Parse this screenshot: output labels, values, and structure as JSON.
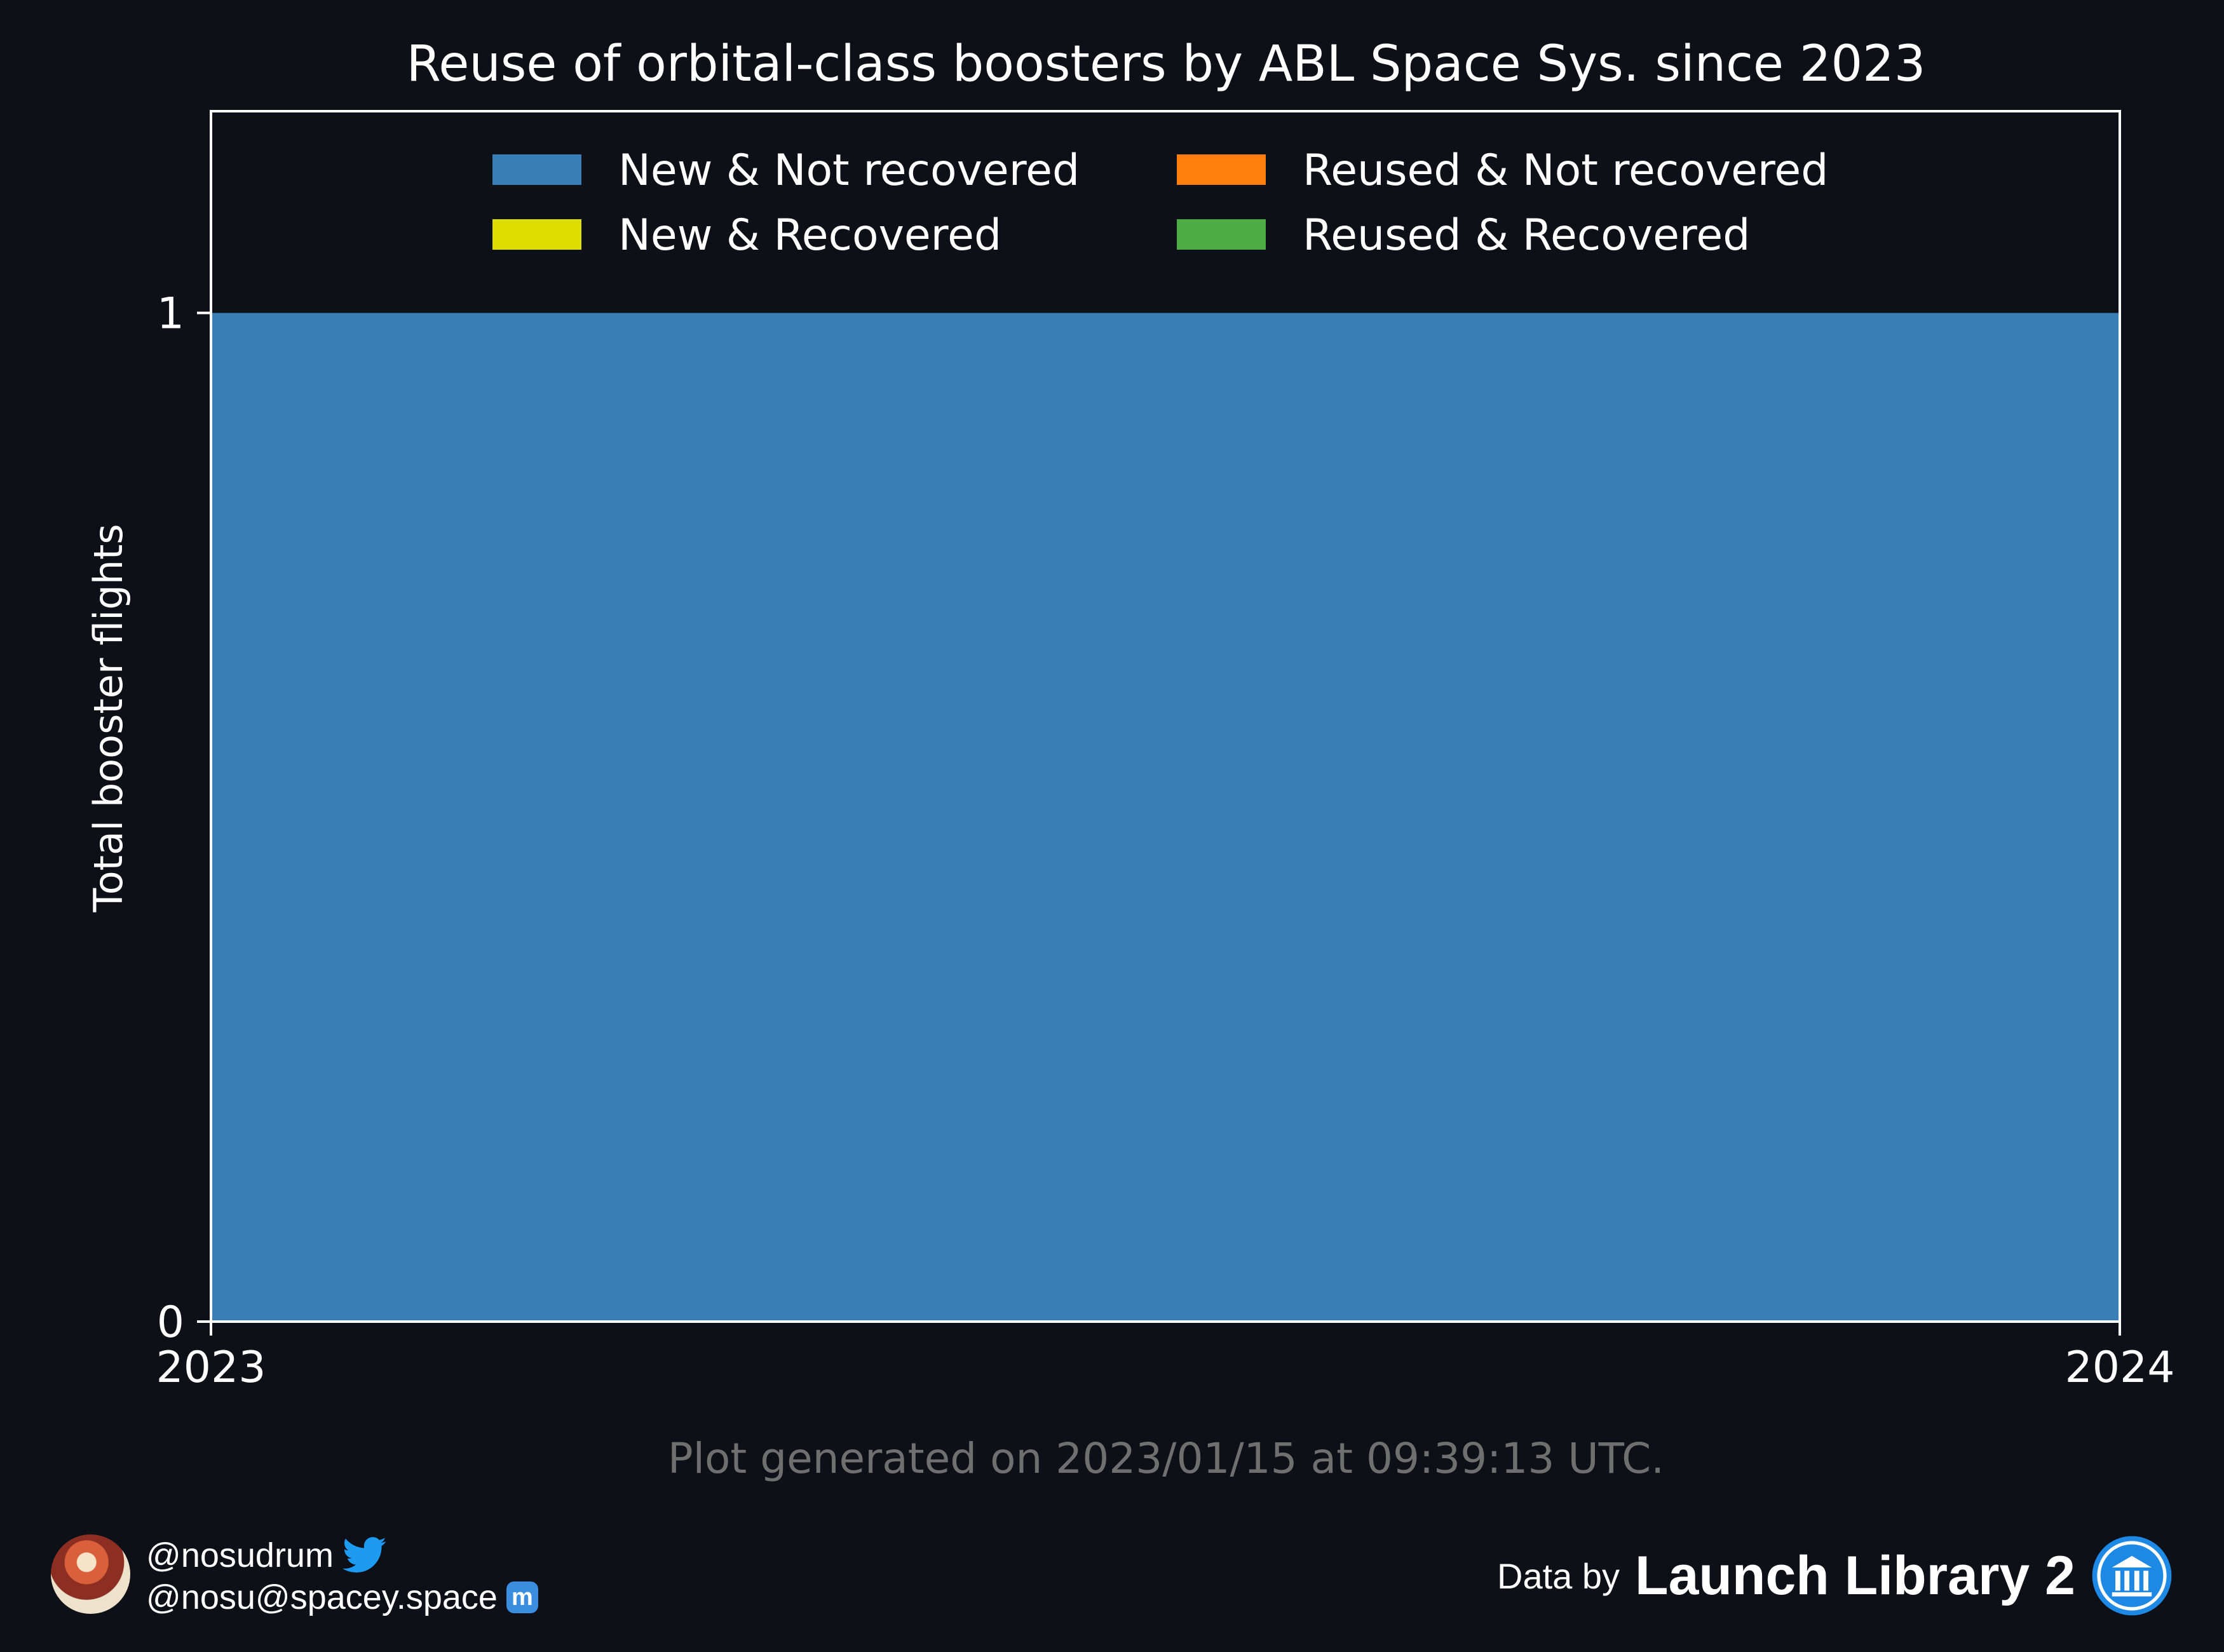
{
  "chart_data": {
    "type": "area",
    "title": "Reuse of orbital-class boosters by ABL Space Sys. since 2023",
    "ylabel": "Total booster flights",
    "xlabel": "",
    "x": [
      2023,
      2024
    ],
    "x_ticks": [
      "2023",
      "2024"
    ],
    "y_ticks": [
      "0",
      "1"
    ],
    "xlim": [
      2023,
      2024
    ],
    "ylim": [
      0,
      1.2
    ],
    "grid": false,
    "legend_position": "top-center",
    "series": [
      {
        "name": "New & Not recovered",
        "color": "#3a7eb8",
        "values": [
          1,
          1
        ]
      },
      {
        "name": "New & Recovered",
        "color": "#dddd00",
        "values": [
          0,
          0
        ]
      },
      {
        "name": "Reused & Not recovered",
        "color": "#ff7f0e",
        "values": [
          0,
          0
        ]
      },
      {
        "name": "Reused & Recovered",
        "color": "#4cab45",
        "values": [
          0,
          0
        ]
      }
    ],
    "footnote": "Plot generated on 2023/01/15 at 09:39:13 UTC."
  },
  "credits": {
    "twitter_handle": "@nosudrum",
    "mastodon_handle": "@nosu@spacey.space",
    "data_by": "Data by",
    "source": "Launch Library 2"
  },
  "colors": {
    "background": "#0d1017",
    "text": "#ffffff",
    "footnote": "#6f6f6f",
    "twitter": "#1d9bf0",
    "mastodon": "#3b8de0"
  }
}
